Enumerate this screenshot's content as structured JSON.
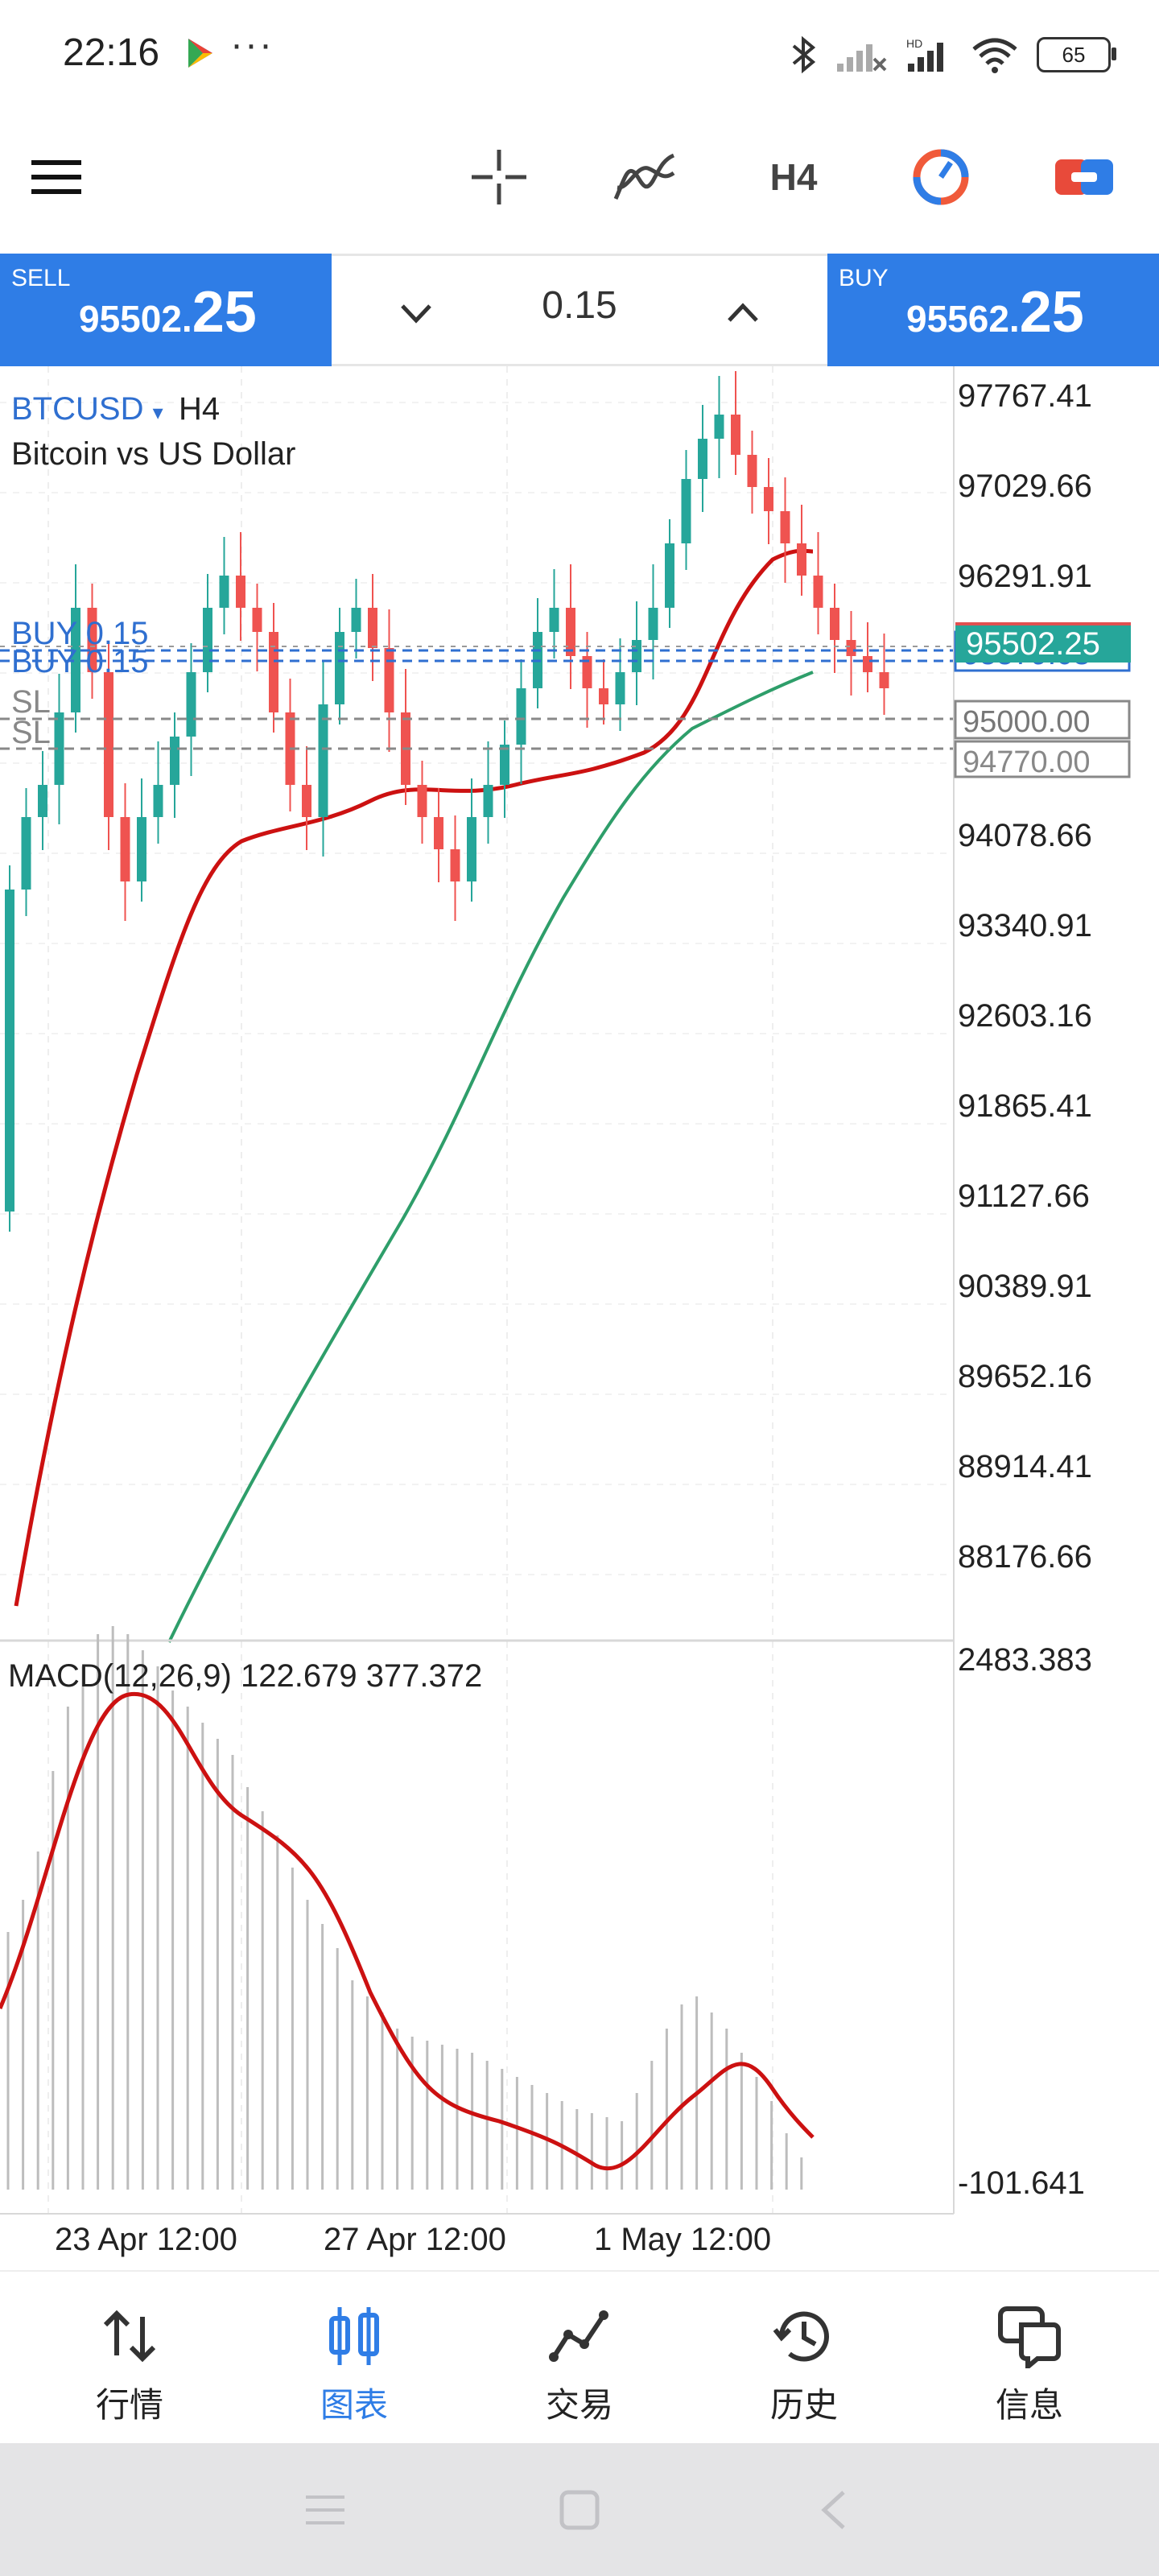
{
  "status_bar": {
    "time": "22:16",
    "dots": "···",
    "battery": "65",
    "icons": [
      "play-store-icon",
      "bluetooth-icon",
      "signal-icon",
      "signal-icon",
      "wifi-icon",
      "battery-icon"
    ]
  },
  "toolbar": {
    "icons": [
      "menu-icon",
      "crosshair-icon",
      "indicators-icon",
      "timeframe",
      "objects-icon",
      "trade-icon"
    ],
    "timeframe": "H4"
  },
  "trade": {
    "sell_label": "SELL",
    "sell_price_small": "95502.",
    "sell_price_big": "25",
    "buy_label": "BUY",
    "buy_price_small": "95562.",
    "buy_price_big": "25",
    "volume": "0.15"
  },
  "chart": {
    "symbol": "BTCUSD",
    "symbol_arrow": "▾",
    "timeframe": "H4",
    "description": "Bitcoin vs US Dollar",
    "order_lines": [
      {
        "label": "BUY 0.15",
        "price": 95579.08
      },
      {
        "label": "BUY 0.15",
        "price": 95520.0
      }
    ],
    "sl_lines": [
      {
        "label": "SL",
        "price": 95000.0
      },
      {
        "label": "SL",
        "price": 94770.0
      }
    ],
    "current_price": "95502.25",
    "order_tag": "95579.08",
    "sl_tag_1": "95000.00",
    "sl_tag_2": "94770.00",
    "price_axis": [
      "97767.41",
      "97029.66",
      "96291.91",
      "94078.66",
      "93340.91",
      "92603.16",
      "91865.41",
      "91127.66",
      "90389.91",
      "89652.16",
      "88914.41",
      "88176.66"
    ],
    "time_axis": [
      "23 Apr 12:00",
      "27 Apr 12:00",
      "1 May 12:00"
    ],
    "colors": {
      "up": "#26a69a",
      "down": "#ef5350",
      "ma_fast": "#cc1111",
      "ma_slow": "#2e9e6a",
      "accent": "#2f7de6"
    }
  },
  "macd": {
    "label": "MACD(12,26,9) 122.679 377.372",
    "axis_top": "2483.383",
    "axis_bottom": "-101.641"
  },
  "bottom_nav": {
    "items": [
      {
        "label": "行情",
        "icon": "quotes-icon"
      },
      {
        "label": "图表",
        "icon": "chart-icon",
        "active": true
      },
      {
        "label": "交易",
        "icon": "trade-icon"
      },
      {
        "label": "历史",
        "icon": "history-icon"
      },
      {
        "label": "信息",
        "icon": "messages-icon"
      }
    ]
  }
}
